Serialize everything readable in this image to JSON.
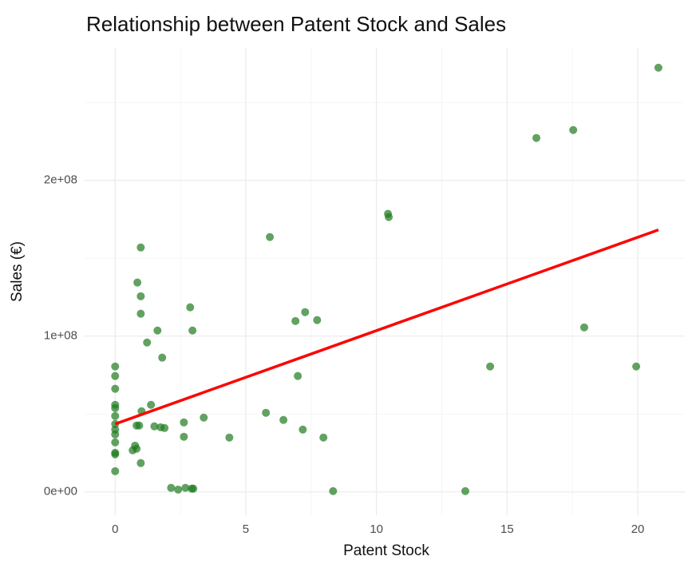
{
  "chart_data": {
    "type": "scatter",
    "title": "Relationship between Patent Stock and Sales",
    "xlabel": "Patent Stock",
    "ylabel": "Sales (€)",
    "xlim": [
      -1.2,
      21.8
    ],
    "ylim": [
      -15000000,
      285000000
    ],
    "xticks": [
      0,
      5,
      10,
      15,
      20
    ],
    "yticks": [
      {
        "value": 0,
        "label": "0e+00"
      },
      {
        "value": 100000000,
        "label": "1e+08"
      },
      {
        "value": 200000000,
        "label": "2e+08"
      }
    ],
    "minor_xticks": [
      2.5,
      7.5,
      12.5,
      17.5
    ],
    "minor_yticks": [
      50000000,
      150000000,
      250000000
    ],
    "grid": true,
    "series": [
      {
        "name": "Sales",
        "color": "#1e7b1e",
        "opacity": 0.7,
        "x": [
          0,
          0,
          0,
          0,
          0,
          0,
          0,
          0,
          0,
          0,
          0,
          0,
          0,
          0.98,
          0.85,
          0.98,
          0.98,
          1.22,
          1.62,
          1.8,
          1.01,
          0.92,
          0.82,
          1.37,
          1.5,
          1.74,
          1.89,
          0.76,
          0.67,
          0.82,
          0.98,
          2.14,
          2.41,
          2.69,
          2.93,
          2.99,
          2.63,
          2.63,
          2.87,
          2.96,
          3.39,
          4.37,
          5.92,
          5.77,
          6.44,
          6.9,
          7.27,
          7.73,
          6.99,
          7.18,
          7.97,
          8.34,
          10.44,
          10.47,
          13.4,
          14.35,
          16.12,
          17.53,
          17.95,
          19.94,
          20.79
        ],
        "values": [
          80500000,
          74400000,
          66200000,
          55900000,
          53800000,
          48700000,
          43600000,
          40000000,
          36900000,
          31800000,
          25100000,
          24100000,
          13300000,
          156900000,
          134400000,
          125600000,
          114400000,
          95900000,
          103600000,
          86200000,
          51800000,
          42600000,
          42600000,
          55900000,
          42100000,
          41500000,
          41000000,
          29700000,
          26700000,
          27700000,
          18500000,
          2600000,
          1500000,
          2600000,
          2100000,
          2100000,
          44600000,
          35400000,
          118500000,
          103600000,
          47700000,
          34900000,
          163600000,
          50800000,
          46200000,
          109700000,
          115400000,
          110300000,
          74400000,
          40000000,
          34900000,
          500000,
          178500000,
          176400000,
          500000,
          80500000,
          227200000,
          232300000,
          105600000,
          80500000,
          272300000
        ]
      },
      {
        "name": "Fit",
        "type": "line",
        "color": "#ff0000",
        "x": [
          0,
          20.79
        ],
        "values": [
          43600000,
          168200000
        ]
      }
    ]
  }
}
